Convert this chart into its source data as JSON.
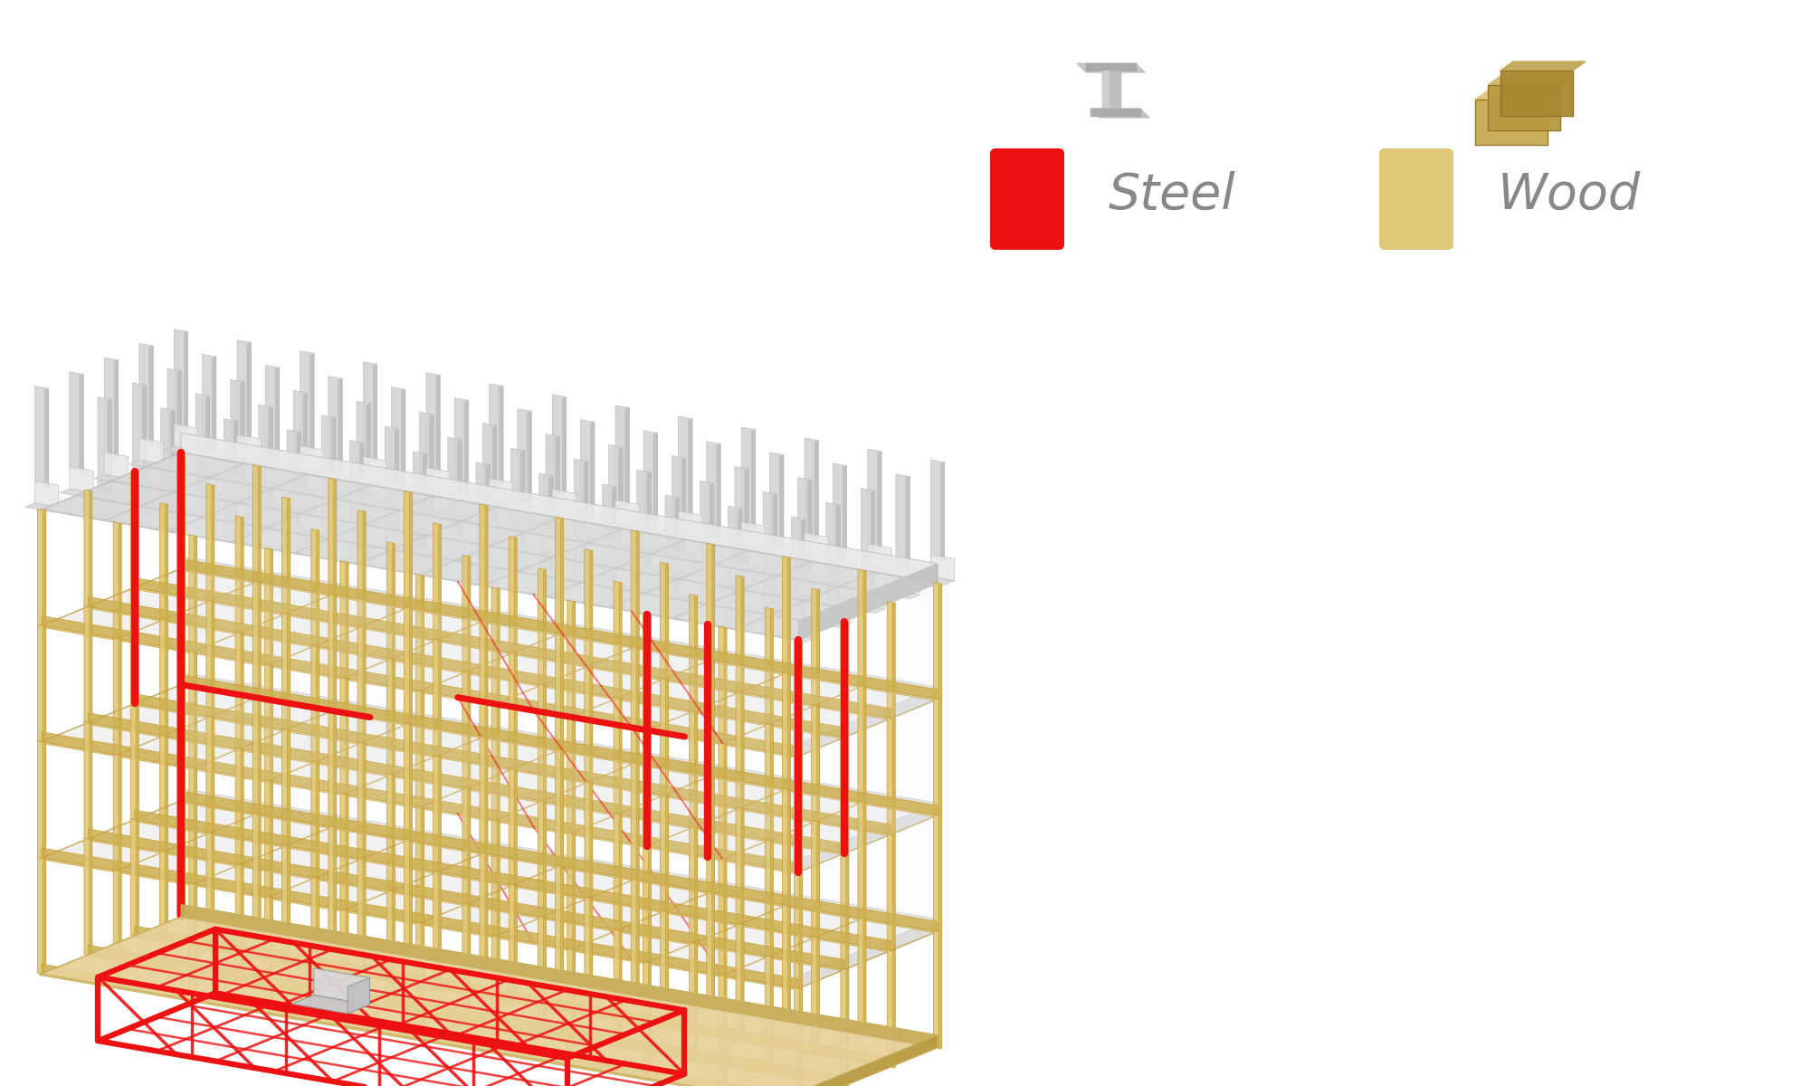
{
  "background_color": "#ffffff",
  "steel_color": "#ee1111",
  "wood_color": "#e8d4a0",
  "wood_color2": "#dfc890",
  "wood_dark": "#c8b060",
  "wood_floor_alpha": 0.88,
  "concrete_color": "#e8e8e8",
  "concrete_mid": "#d8d8d8",
  "concrete_dark": "#c0c0c0",
  "frame_col_color": "#e0c878",
  "frame_col_edge": "#c8a040",
  "pile_color": "#d4d4d4",
  "pile_dark": "#b8b8b8",
  "glass_color": "#f0f4f8",
  "legend_steel_color": "#ee1111",
  "legend_wood_color": "#dfc878",
  "legend_text_color": "#888888",
  "legend_steel_label": "Steel",
  "legend_wood_label": "Wood"
}
